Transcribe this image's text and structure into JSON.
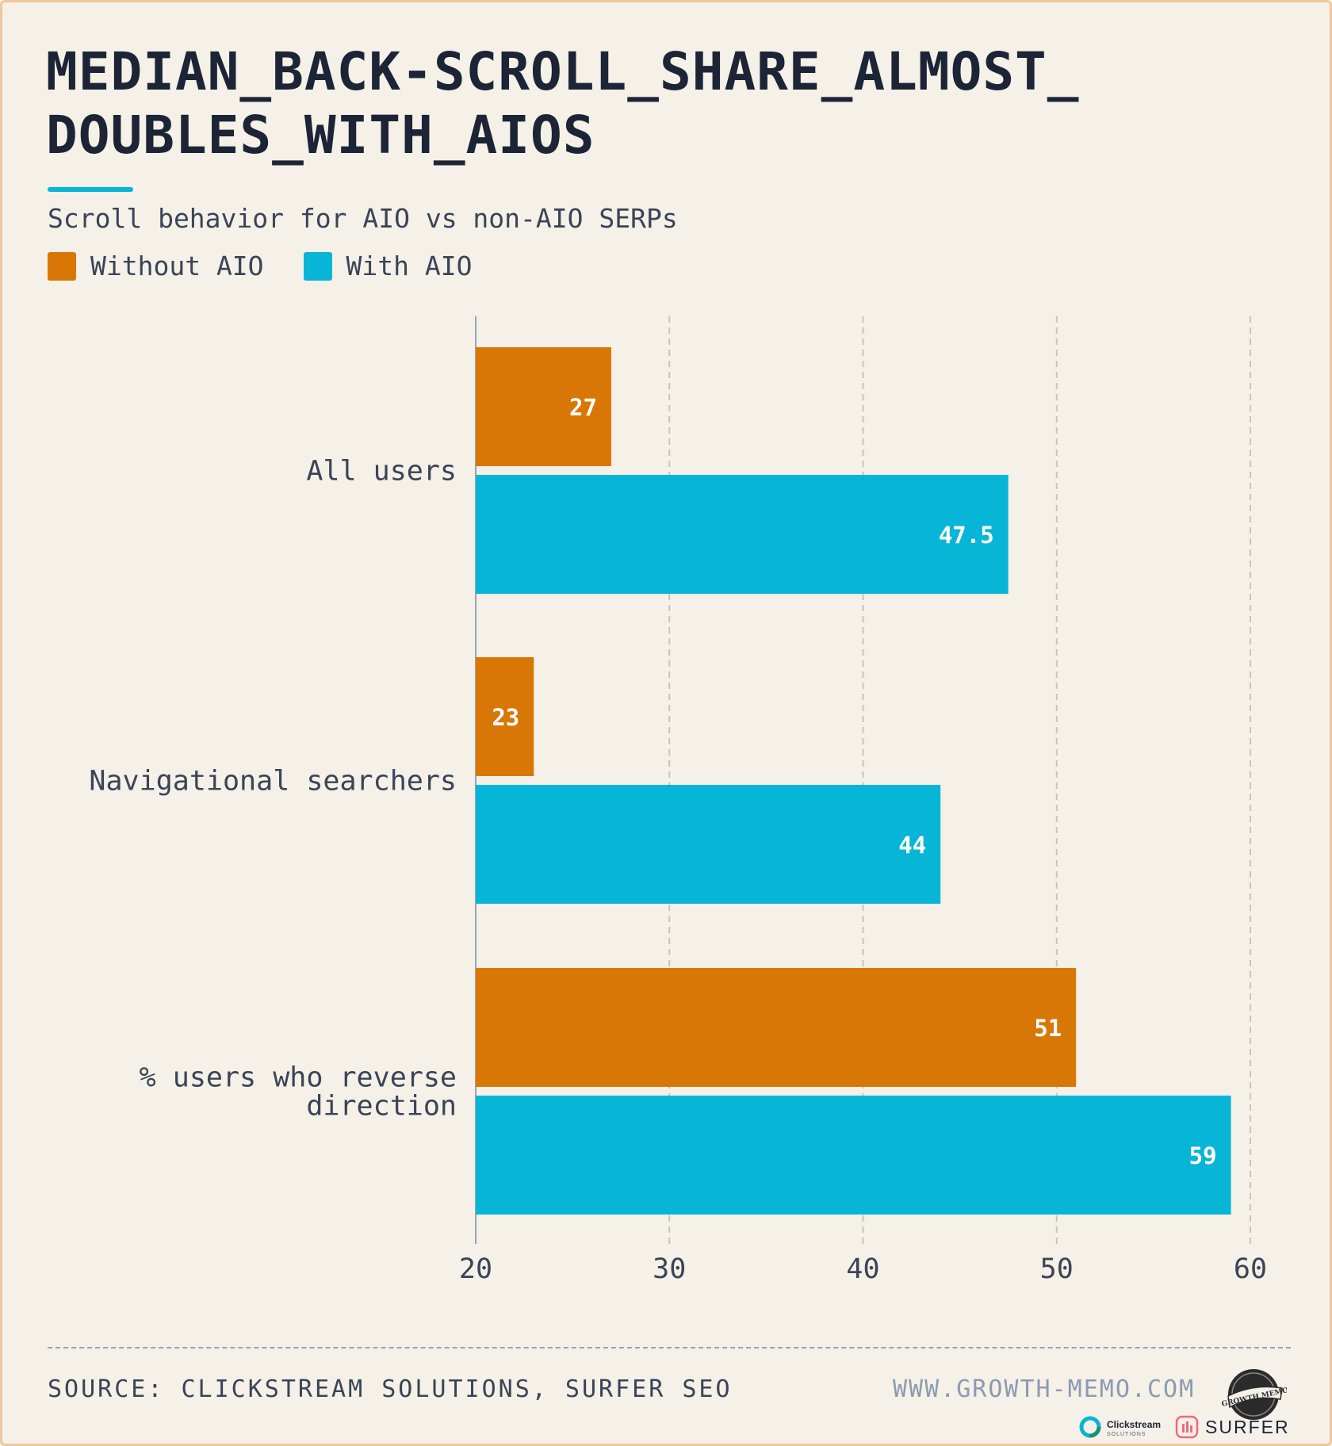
{
  "title_lines": [
    "MEDIAN_BACK-SCROLL_SHARE_ALMOST_",
    "DOUBLES_WITH_AIOS"
  ],
  "subtitle": "Scroll behavior for AIO vs non-AIO SERPs",
  "legend": [
    {
      "label": "Without AIO",
      "color": "#d97706"
    },
    {
      "label": "With AIO",
      "color": "#07b5d6"
    }
  ],
  "chart_data": {
    "type": "bar",
    "orientation": "horizontal",
    "categories": [
      [
        "All users"
      ],
      [
        "Navigational searchers"
      ],
      [
        "% users who reverse",
        "direction"
      ]
    ],
    "series": [
      {
        "name": "Without AIO",
        "color": "#d97706",
        "values": [
          27,
          23,
          51
        ],
        "labels": [
          "27",
          "23",
          "51"
        ]
      },
      {
        "name": "With AIO",
        "color": "#07b5d6",
        "values": [
          47.5,
          44,
          59
        ],
        "labels": [
          "47.5",
          "44",
          "59"
        ]
      }
    ],
    "xlim": [
      20,
      60
    ],
    "xticks": [
      20,
      30,
      40,
      50,
      60
    ],
    "grid": true,
    "legend_position": "top-left"
  },
  "footer": {
    "source": "SOURCE: CLICKSTREAM SOLUTIONS, SURFER SEO",
    "website": "WWW.GROWTH-MEMO.COM",
    "badge_text": "GROWTH MEMO",
    "logo_clickstream": "Clickstream",
    "logo_clickstream_sub": "SOLUTIONS",
    "logo_surfer": "SURFER"
  }
}
